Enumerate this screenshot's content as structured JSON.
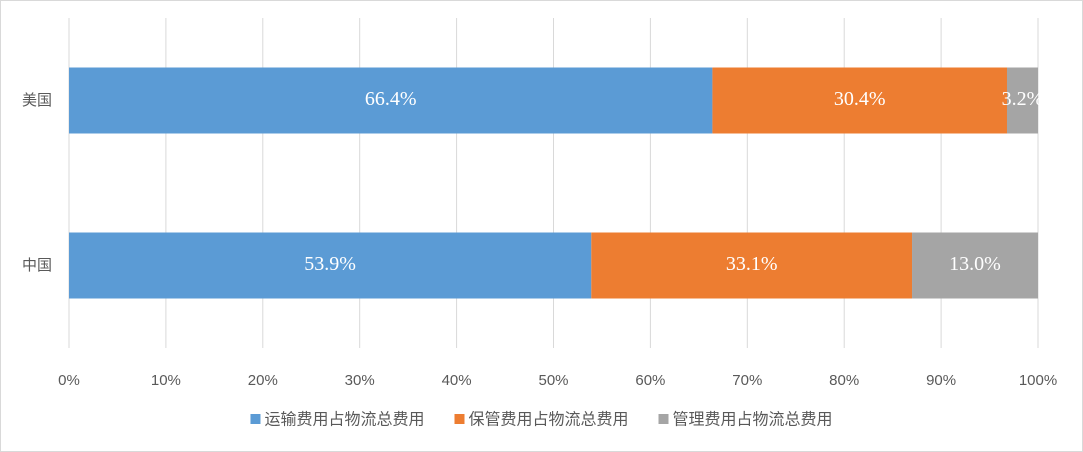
{
  "chart_data": {
    "type": "stacked-barh",
    "categories": [
      "美国",
      "中国"
    ],
    "series": [
      {
        "name": "运输费用占物流总费用",
        "color": "#5b9bd5",
        "values": [
          66.4,
          53.9
        ],
        "value_labels": [
          "66.4%",
          "53.9%"
        ]
      },
      {
        "name": "保管费用占物流总费用",
        "color": "#ed7d31",
        "values": [
          30.4,
          33.1
        ],
        "value_labels": [
          "30.4%",
          "33.1%"
        ]
      },
      {
        "name": "管理费用占物流总费用",
        "color": "#a5a5a5",
        "values": [
          3.2,
          13.0
        ],
        "value_labels": [
          "3.2%",
          "13.0%"
        ]
      }
    ],
    "xlim": [
      0,
      100
    ],
    "xticks": [
      {
        "value": 0,
        "label": "0%"
      },
      {
        "value": 10,
        "label": "10%"
      },
      {
        "value": 20,
        "label": "20%"
      },
      {
        "value": 30,
        "label": "30%"
      },
      {
        "value": 40,
        "label": "40%"
      },
      {
        "value": 50,
        "label": "50%"
      },
      {
        "value": 60,
        "label": "60%"
      },
      {
        "value": 70,
        "label": "70%"
      },
      {
        "value": 80,
        "label": "80%"
      },
      {
        "value": 90,
        "label": "90%"
      },
      {
        "value": 100,
        "label": "100%"
      }
    ],
    "grid": true,
    "legend": "bottom"
  }
}
